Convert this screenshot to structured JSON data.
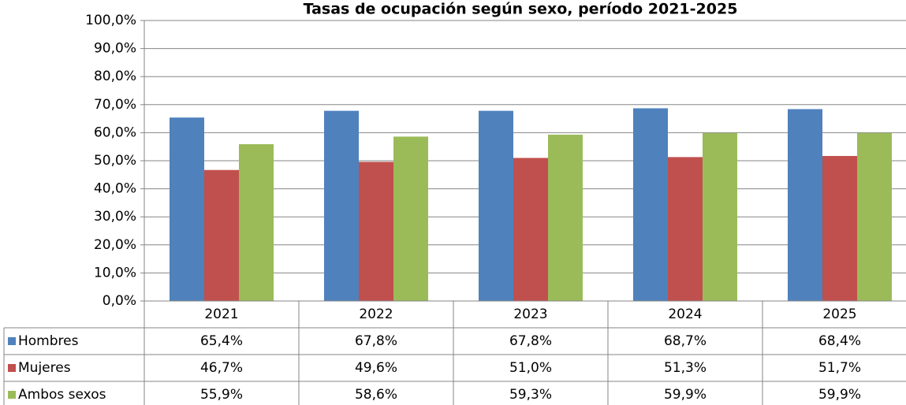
{
  "chart_data": {
    "type": "bar",
    "title": "Tasas de ocupación según sexo, período 2021-2025",
    "categories": [
      "2021",
      "2022",
      "2023",
      "2024",
      "2025"
    ],
    "series": [
      {
        "name": "Hombres",
        "color": "#4f81bd",
        "values": [
          65.4,
          67.8,
          67.8,
          68.7,
          68.4
        ],
        "value_labels": [
          "65,4%",
          "67,8%",
          "67,8%",
          "68,7%",
          "68,4%"
        ]
      },
      {
        "name": "Mujeres",
        "color": "#c0504d",
        "values": [
          46.7,
          49.6,
          51.0,
          51.3,
          51.7
        ],
        "value_labels": [
          "46,7%",
          "49,6%",
          "51,0%",
          "51,3%",
          "51,7%"
        ]
      },
      {
        "name": "Ambos sexos",
        "color": "#9bbb59",
        "values": [
          55.9,
          58.6,
          59.3,
          59.9,
          59.9
        ],
        "value_labels": [
          "55,9%",
          "58,6%",
          "59,3%",
          "59,9%",
          "59,9%"
        ]
      }
    ],
    "ylim": [
      0,
      100
    ],
    "yticks": [
      {
        "value": 0,
        "label": "0,0%"
      },
      {
        "value": 10,
        "label": "10,0%"
      },
      {
        "value": 20,
        "label": "20,0%"
      },
      {
        "value": 30,
        "label": "30,0%"
      },
      {
        "value": 40,
        "label": "40,0%"
      },
      {
        "value": 50,
        "label": "50,0%"
      },
      {
        "value": 60,
        "label": "60,0%"
      },
      {
        "value": 70,
        "label": "70,0%"
      },
      {
        "value": 80,
        "label": "80,0%"
      },
      {
        "value": 90,
        "label": "90,0%"
      },
      {
        "value": 100,
        "label": "100,0%"
      }
    ],
    "grid": true
  }
}
